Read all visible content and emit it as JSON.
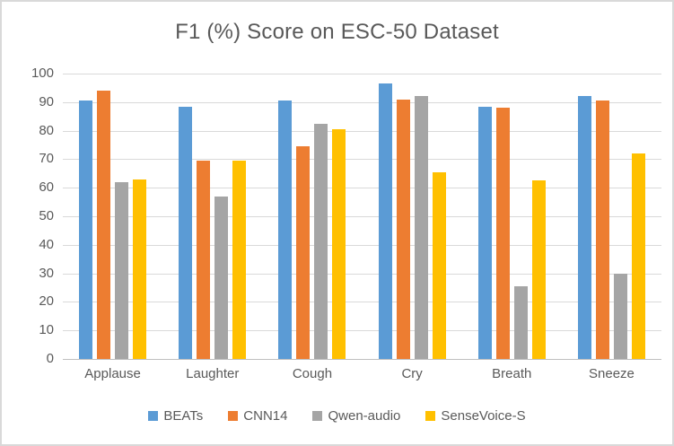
{
  "figure": {
    "background": "#FFFFFF",
    "border_color": "#D9D9D9",
    "text_color": "#595959"
  },
  "chart_data": {
    "type": "bar",
    "title": "F1 (%) Score on ESC-50 Dataset",
    "categories": [
      "Applause",
      "Laughter",
      "Cough",
      "Cry",
      "Breath",
      "Sneeze"
    ],
    "series": [
      {
        "name": "BEATs",
        "color": "#5B9BD5",
        "values": [
          90.5,
          88.5,
          90.5,
          96.5,
          88.5,
          92.0
        ]
      },
      {
        "name": "CNN14",
        "color": "#ED7D31",
        "values": [
          94.0,
          69.5,
          74.5,
          91.0,
          88.0,
          90.5
        ]
      },
      {
        "name": "Qwen-audio",
        "color": "#A5A5A5",
        "values": [
          62.0,
          57.0,
          82.5,
          92.0,
          25.5,
          30.0
        ]
      },
      {
        "name": "SenseVoice-S",
        "color": "#FFC000",
        "values": [
          63.0,
          69.5,
          80.5,
          65.5,
          62.5,
          72.0
        ]
      }
    ],
    "xlabel": "",
    "ylabel": "",
    "ylim": [
      0,
      100
    ],
    "yticks": [
      0,
      10,
      20,
      30,
      40,
      50,
      60,
      70,
      80,
      90,
      100
    ],
    "grid": true,
    "legend_position": "bottom",
    "gridline_color": "#D9D9D9",
    "axis_line_color": "#BFBFBF"
  }
}
